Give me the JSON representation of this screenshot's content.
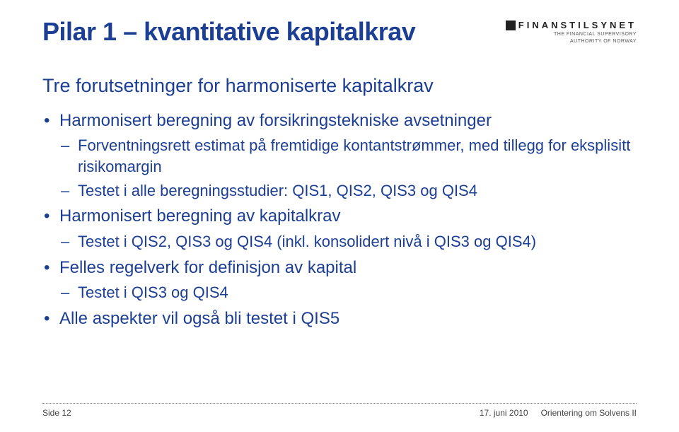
{
  "colors": {
    "primary": "#1c3f94",
    "text": "#444444",
    "background": "#ffffff",
    "dotline": "#888888"
  },
  "header": {
    "title": "Pilar 1 – kvantitative kapitalkrav",
    "logo": {
      "main": "FINANSTILSYNET",
      "sub1": "THE FINANCIAL SUPERVISORY",
      "sub2": "AUTHORITY OF NORWAY"
    }
  },
  "subtitle": "Tre forutsetninger for harmoniserte kapitalkrav",
  "bullets": [
    {
      "text": "Harmonisert beregning av forsikringstekniske avsetninger",
      "sub": [
        "Forventningsrett estimat på fremtidige kontantstrømmer, med tillegg for eksplisitt risikomargin",
        "Testet i alle beregningsstudier: QIS1, QIS2, QIS3 og QIS4"
      ]
    },
    {
      "text": "Harmonisert beregning av kapitalkrav",
      "sub": [
        "Testet i QIS2, QIS3 og QIS4 (inkl. konsolidert nivå i QIS3 og QIS4)"
      ]
    },
    {
      "text": "Felles regelverk for definisjon av kapital",
      "sub": [
        "Testet i QIS3 og QIS4"
      ]
    },
    {
      "text": "Alle aspekter vil også bli testet i QIS5",
      "sub": []
    }
  ],
  "footer": {
    "left": "Side 12",
    "date": "17. juni 2010",
    "context": "Orientering om Solvens II"
  }
}
